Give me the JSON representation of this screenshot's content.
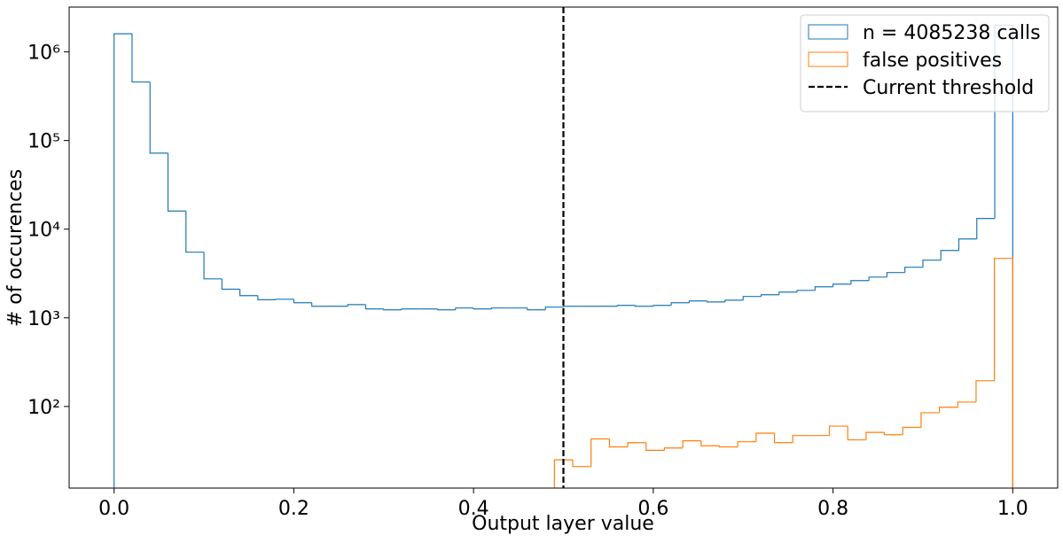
{
  "chart_data": {
    "type": "histogram",
    "xlabel": "Output layer value",
    "ylabel": "# of occurences",
    "xlim": [
      -0.05,
      1.05
    ],
    "ylim": [
      12,
      3200000
    ],
    "log_y": true,
    "legend": "upper right",
    "xticks": [
      {
        "value": 0,
        "label": "0.0"
      },
      0.2,
      0.4,
      0.6,
      0.8,
      {
        "value": 1,
        "label": "1.0"
      }
    ],
    "yticks": [
      {
        "value": 100,
        "label": "10²"
      },
      {
        "value": 1000,
        "label": "10³"
      },
      {
        "value": 10000,
        "label": "10⁴"
      },
      {
        "value": 100000,
        "label": "10⁵"
      },
      {
        "value": 1000000,
        "label": "10⁶"
      }
    ],
    "series": [
      {
        "name": "n = 4085238 calls",
        "color": "#1f77b4",
        "bins": [
          0,
          0.02,
          0.04,
          0.06,
          0.08,
          0.1,
          0.12,
          0.14,
          0.16,
          0.18,
          0.2,
          0.22,
          0.24,
          0.26,
          0.28,
          0.3,
          0.32,
          0.34,
          0.36,
          0.38,
          0.4,
          0.42,
          0.44,
          0.46,
          0.48,
          0.5,
          0.52,
          0.54,
          0.56,
          0.58,
          0.6,
          0.62,
          0.64,
          0.66,
          0.68,
          0.7,
          0.72,
          0.74,
          0.76,
          0.78,
          0.8,
          0.82,
          0.84,
          0.86,
          0.88,
          0.9,
          0.92,
          0.94,
          0.96,
          0.98,
          1.0
        ],
        "values": [
          1600000,
          457000,
          72000,
          16000,
          5500,
          2750,
          2100,
          1780,
          1600,
          1620,
          1480,
          1350,
          1350,
          1410,
          1260,
          1230,
          1260,
          1260,
          1230,
          1290,
          1260,
          1290,
          1290,
          1230,
          1320,
          1350,
          1350,
          1350,
          1380,
          1350,
          1380,
          1480,
          1550,
          1510,
          1580,
          1740,
          1820,
          1950,
          2040,
          2240,
          2400,
          2630,
          2880,
          3240,
          3720,
          4470,
          5750,
          7760,
          13200,
          2000000
        ]
      },
      {
        "name": "false positives",
        "color": "#ff7f0e",
        "bins": [
          0.49,
          0.5104,
          0.5308,
          0.5512,
          0.5716,
          0.592,
          0.6124,
          0.6328,
          0.6532,
          0.6736,
          0.694,
          0.7144,
          0.7348,
          0.7552,
          0.7756,
          0.796,
          0.8164,
          0.8368,
          0.8572,
          0.8776,
          0.898,
          0.9184,
          0.9388,
          0.9592,
          0.9796,
          1.0
        ],
        "values": [
          25,
          21,
          43,
          35,
          39,
          32,
          34,
          41,
          36,
          35,
          40,
          50,
          39,
          47,
          47,
          60,
          42,
          51,
          48,
          58,
          85,
          98,
          112,
          195,
          4680
        ]
      }
    ],
    "vlines": [
      {
        "name": "Current threshold",
        "x": 0.5,
        "color": "#000000"
      }
    ]
  }
}
